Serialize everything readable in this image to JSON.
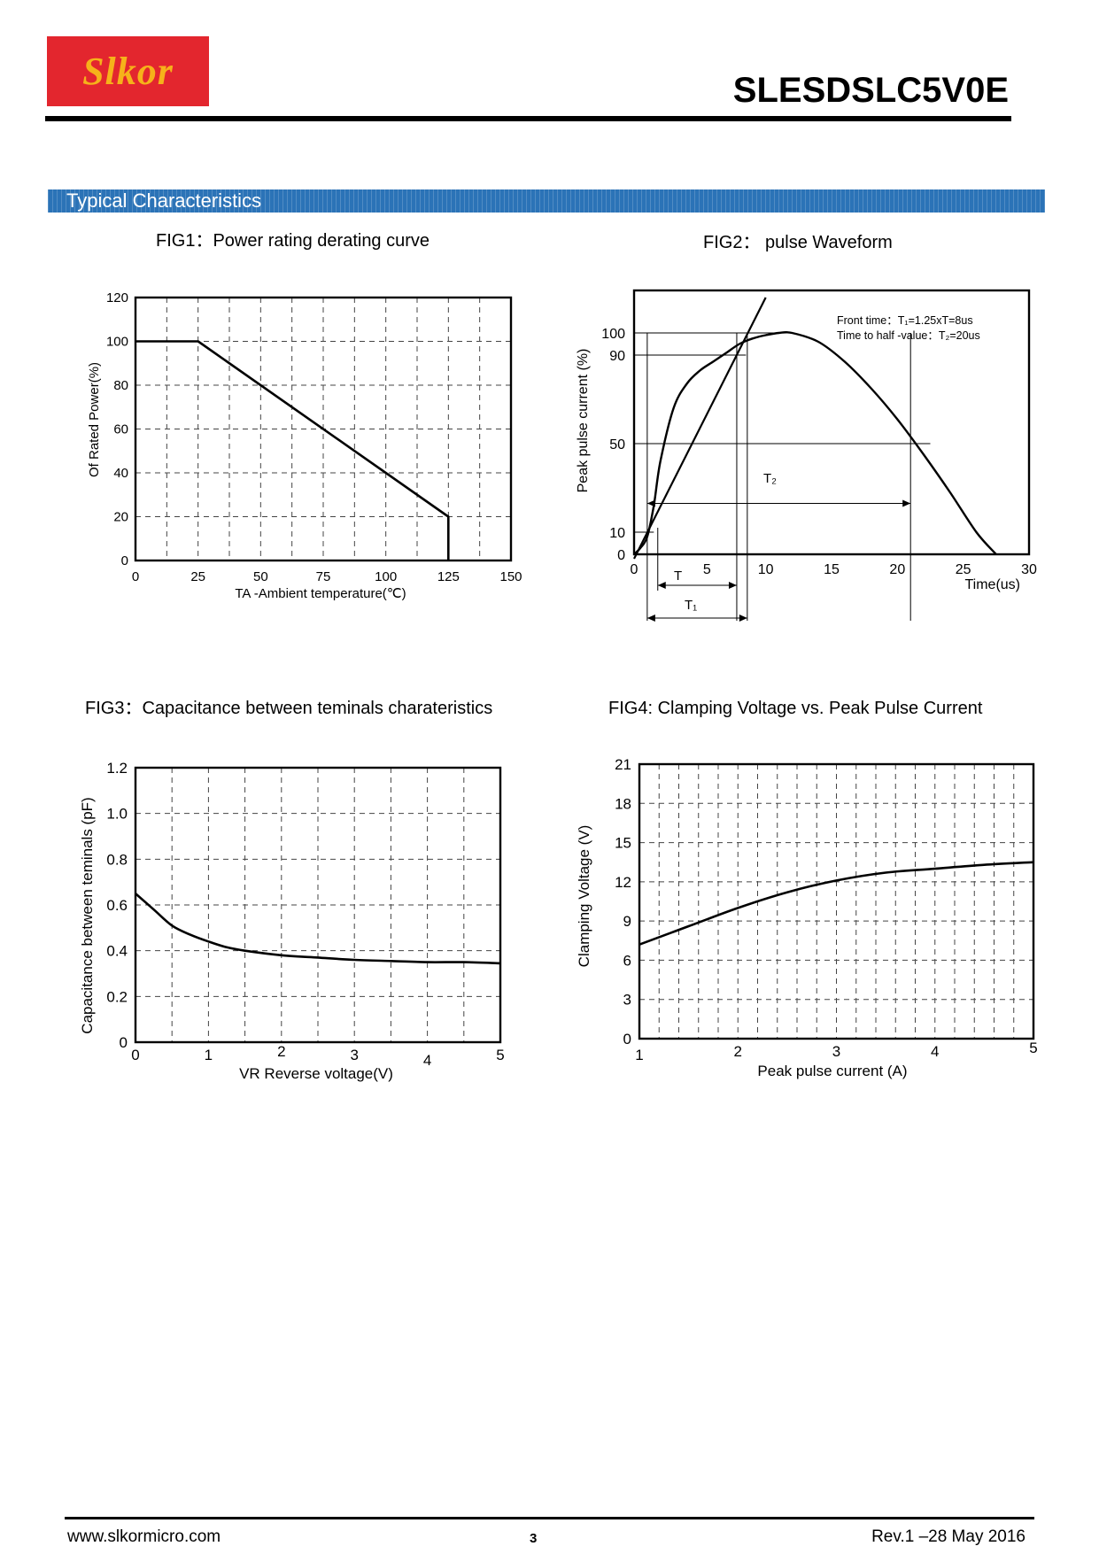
{
  "header": {
    "logo_text": "Slkor",
    "part_number": "SLESDSLC5V0E"
  },
  "section_title": "Typical Characteristics",
  "figures": {
    "fig1_title": "FIG1：Power rating derating curve",
    "fig2_title": "FIG2： pulse  Waveform",
    "fig3_title": "FIG3：Capacitance between teminals charateristics",
    "fig4_title": "FIG4: Clamping Voltage vs. Peak Pulse Current"
  },
  "chart_data": [
    {
      "type": "line",
      "title": "FIG1：Power rating derating curve",
      "xlabel": "TA -Ambient temperature(℃)",
      "ylabel": "Of Rated Power(%)",
      "xlim": [
        0,
        150
      ],
      "ylim": [
        0,
        120
      ],
      "x_ticks": [
        "0",
        "25",
        "50",
        "75",
        "100",
        "125",
        "150"
      ],
      "y_ticks": [
        "0",
        "20",
        "40",
        "60",
        "80",
        "100",
        "120"
      ],
      "grid": true,
      "series": [
        {
          "x": [
            0,
            25,
            125,
            125
          ],
          "y": [
            100,
            100,
            20,
            0
          ]
        }
      ]
    },
    {
      "type": "line",
      "title": "FIG2： pulse  Waveform",
      "xlabel": "Time(us)",
      "ylabel": "Peak pulse current (%)",
      "xlim": [
        0,
        30
      ],
      "ylim": [
        0,
        100
      ],
      "x_ticks": [
        "0",
        "5",
        "10",
        "15",
        "20",
        "25",
        "30"
      ],
      "y_ticks": [
        "0",
        "10",
        "50",
        "90",
        "100"
      ],
      "grid": false,
      "annotations": {
        "front_time": "Front time：T₁=1.25xT=8us",
        "half_value": "Time to half -value：T₂=20us",
        "T_label": "T",
        "T1_label": "T₁",
        "T2_label": "T₂"
      },
      "series": [
        {
          "x": [
            0,
            0.5,
            1,
            1.5,
            2,
            3,
            4,
            5,
            6,
            7,
            8,
            9,
            10,
            11,
            12,
            14,
            16,
            18,
            20,
            22,
            24,
            26,
            27.5
          ],
          "y": [
            0,
            3,
            8,
            22,
            42,
            66,
            77,
            83,
            87,
            91,
            95,
            97.5,
            99,
            100,
            100,
            96,
            87,
            75,
            61,
            45,
            28,
            10,
            0
          ]
        },
        {
          "x": [
            1.2,
            9.5
          ],
          "y": [
            10,
            110
          ]
        }
      ]
    },
    {
      "type": "line",
      "title": "FIG3：Capacitance between teminals charateristics",
      "xlabel": "VR Reverse voltage(V)",
      "ylabel": "Capacitance between teminals  (pF)",
      "xlim": [
        0,
        5
      ],
      "ylim": [
        0,
        1.2
      ],
      "x_ticks": [
        "0",
        "1",
        "2",
        "3",
        "4",
        "5"
      ],
      "y_ticks": [
        "0",
        "0.2",
        "0.4",
        "0.6",
        "0.8",
        "1.0",
        "1.2"
      ],
      "grid": true,
      "series": [
        {
          "x": [
            0,
            0.25,
            0.5,
            0.75,
            1,
            1.25,
            1.5,
            2,
            2.5,
            3,
            3.5,
            4,
            4.5,
            5
          ],
          "y": [
            0.65,
            0.58,
            0.51,
            0.47,
            0.44,
            0.415,
            0.4,
            0.38,
            0.37,
            0.36,
            0.355,
            0.35,
            0.35,
            0.345
          ]
        }
      ]
    },
    {
      "type": "line",
      "title": "FIG4: Clamping Voltage vs. Peak Pulse Current",
      "xlabel": "Peak pulse current (A)",
      "ylabel": "Clamping Voltage (V)",
      "xlim": [
        1,
        5
      ],
      "ylim": [
        0,
        21
      ],
      "x_ticks": [
        "1",
        "2",
        "3",
        "4",
        "5"
      ],
      "y_ticks": [
        "0",
        "3",
        "6",
        "9",
        "12",
        "15",
        "18",
        "21"
      ],
      "grid": true,
      "series": [
        {
          "x": [
            1,
            1.5,
            2,
            2.5,
            3,
            3.5,
            4,
            4.5,
            5
          ],
          "y": [
            7.2,
            8.6,
            10.0,
            11.2,
            12.1,
            12.7,
            13.0,
            13.3,
            13.5
          ]
        }
      ]
    }
  ],
  "footer": {
    "website": "www.slkormicro.com",
    "page": "3",
    "revision": "Rev.1 –28 May 2016"
  }
}
